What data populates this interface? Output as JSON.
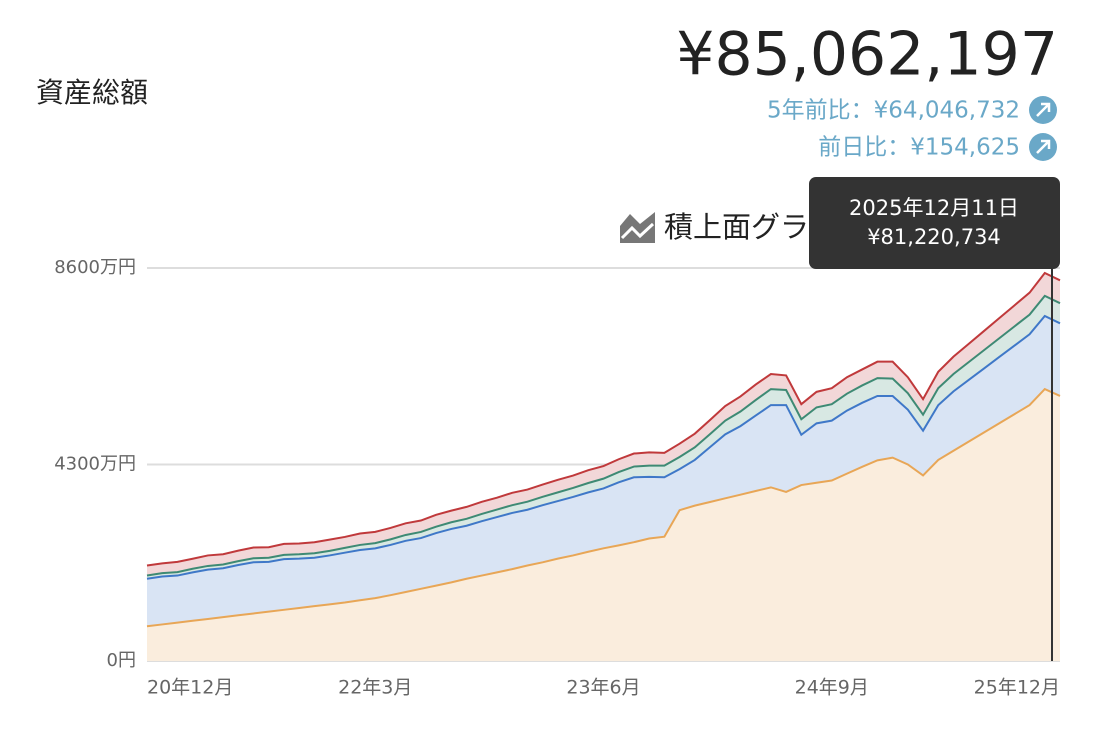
{
  "header": {
    "label": "資産総額",
    "total": "¥85,062,197",
    "change_5y": "5年前比：¥64,046,732",
    "change_day": "前日比：¥154,625"
  },
  "chart_data": {
    "type": "stacked_area",
    "title": "積上面グラフ",
    "categories": [
      "20年12月",
      null,
      null,
      null,
      null,
      null,
      null,
      null,
      null,
      null,
      null,
      null,
      null,
      null,
      null,
      "22年3月",
      null,
      null,
      null,
      null,
      null,
      null,
      null,
      null,
      null,
      null,
      null,
      null,
      null,
      null,
      "23年6月",
      null,
      null,
      null,
      null,
      null,
      null,
      null,
      null,
      null,
      null,
      null,
      null,
      null,
      null,
      "24年9月",
      null,
      null,
      null,
      null,
      null,
      null,
      null,
      null,
      null,
      null,
      null,
      null,
      null,
      null,
      "25年12月"
    ],
    "series": [
      {
        "color": "#e8a656",
        "values": [
          760,
          800,
          840,
          880,
          920,
          960,
          1000,
          1040,
          1080,
          1120,
          1160,
          1200,
          1240,
          1280,
          1330,
          1375,
          1440,
          1510,
          1580,
          1650,
          1720,
          1800,
          1870,
          1940,
          2010,
          2090,
          2160,
          2240,
          2310,
          2390,
          2466,
          2530,
          2600,
          2680,
          2720,
          3300,
          3400,
          3480,
          3560,
          3640,
          3720,
          3800,
          3700,
          3850,
          3900,
          3950,
          4100,
          4250,
          4390,
          4450,
          4300,
          4060,
          4400,
          4600,
          4800,
          5000,
          5200,
          5400,
          5600,
          5950,
          5800
        ]
      },
      {
        "color": "#3f78c8",
        "values": [
          1040,
          1050,
          1030,
          1060,
          1080,
          1070,
          1100,
          1120,
          1090,
          1110,
          1080,
          1060,
          1070,
          1090,
          1100,
          1090,
          1100,
          1120,
          1110,
          1150,
          1170,
          1160,
          1190,
          1210,
          1230,
          1220,
          1250,
          1260,
          1280,
          1300,
          1310,
          1380,
          1420,
          1350,
          1300,
          900,
          1000,
          1200,
          1400,
          1500,
          1650,
          1800,
          1900,
          1100,
          1300,
          1310,
          1380,
          1400,
          1410,
          1350,
          1200,
          980,
          1200,
          1300,
          1350,
          1400,
          1450,
          1500,
          1550,
          1600,
          1590
        ]
      },
      {
        "color": "#3e8a74",
        "values": [
          70,
          72,
          75,
          78,
          80,
          82,
          85,
          88,
          90,
          92,
          95,
          98,
          100,
          105,
          110,
          115,
          122,
          128,
          134,
          140,
          146,
          152,
          158,
          164,
          170,
          176,
          182,
          190,
          198,
          205,
          215,
          225,
          235,
          245,
          255,
          265,
          275,
          285,
          300,
          320,
          340,
          350,
          330,
          340,
          350,
          360,
          370,
          380,
          390,
          380,
          360,
          350,
          370,
          380,
          390,
          400,
          410,
          420,
          430,
          440,
          440
        ]
      },
      {
        "color": "#c0393b",
        "values": [
          220,
          215,
          225,
          220,
          230,
          225,
          230,
          235,
          230,
          240,
          235,
          240,
          245,
          240,
          250,
          245,
          250,
          255,
          250,
          260,
          255,
          260,
          265,
          260,
          270,
          265,
          270,
          275,
          270,
          280,
          275,
          280,
          285,
          290,
          280,
          290,
          300,
          310,
          320,
          330,
          340,
          330,
          320,
          330,
          340,
          350,
          360,
          350,
          360,
          370,
          350,
          340,
          360,
          380,
          400,
          420,
          440,
          460,
          480,
          500,
          500
        ]
      }
    ],
    "ylim": [
      0,
      8600
    ],
    "yticks": [
      {
        "value": 0,
        "label": "0円"
      },
      {
        "value": 4300,
        "label": "4300万円"
      },
      {
        "value": 8600,
        "label": "8600万円"
      }
    ],
    "grid": true,
    "tooltip": {
      "date": "2025年12月11日",
      "value": "¥81,220,734"
    }
  }
}
